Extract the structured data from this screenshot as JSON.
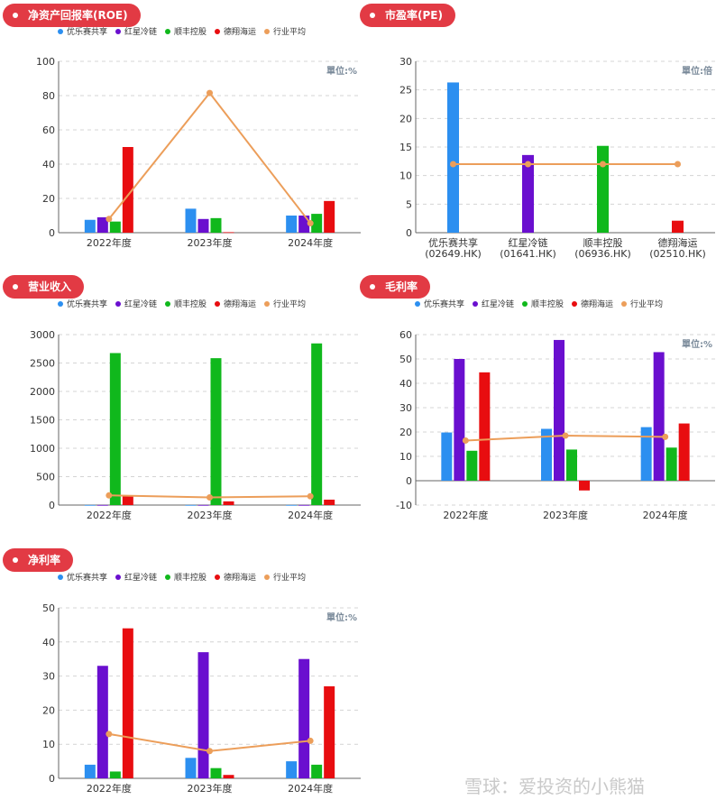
{
  "watermark": "雪球：爱投资的小熊猫",
  "colors": {
    "youle": "#2c8ff0",
    "hongxing": "#6a0fcf",
    "shunfeng": "#10b81c",
    "dexiang": "#e80d10",
    "avg": "#ec9e5a"
  },
  "legend": [
    {
      "name": "优乐赛共享",
      "color": "#2c8ff0",
      "dot": "dot-blue"
    },
    {
      "name": "红星冷链",
      "color": "#6a0fcf",
      "dot": "dot-purple"
    },
    {
      "name": "顺丰控股",
      "color": "#10b81c",
      "dot": "dot-green"
    },
    {
      "name": "德翔海运",
      "color": "#e80d10",
      "dot": "dot-red"
    },
    {
      "name": "行业平均",
      "color": "#ec9e5a",
      "dot": "dot-orange"
    }
  ],
  "chart_data": [
    {
      "id": "roe",
      "title": "净资产回报率(ROE)",
      "type": "bar",
      "unit_label": "單位:%",
      "categories": [
        "2022年度",
        "2023年度",
        "2024年度"
      ],
      "ylim": [
        0,
        100
      ],
      "yticks": [
        0,
        20,
        40,
        60,
        80,
        100
      ],
      "series": [
        {
          "name": "优乐赛共享",
          "values": [
            7.5,
            14,
            10
          ]
        },
        {
          "name": "红星冷链",
          "values": [
            9,
            8,
            10
          ]
        },
        {
          "name": "顺丰控股",
          "values": [
            6.5,
            8.5,
            11
          ]
        },
        {
          "name": "德翔海运",
          "values": [
            50,
            0.3,
            18.5
          ]
        }
      ],
      "line": {
        "name": "行业平均",
        "values": [
          8,
          81.5,
          5.5
        ]
      }
    },
    {
      "id": "pe",
      "title": "市盈率(PE)",
      "type": "bar",
      "unit_label": "單位:倍",
      "categories": [
        "优乐赛共享\n(02649.HK)",
        "红星冷链\n(01641.HK)",
        "顺丰控股\n(06936.HK)",
        "德翔海运\n(02510.HK)"
      ],
      "ylim": [
        0,
        30
      ],
      "yticks": [
        0,
        5,
        10,
        15,
        20,
        25,
        30
      ],
      "bars": [
        26.3,
        13.6,
        15.2,
        2.1
      ],
      "line": {
        "name": "行业平均",
        "values": [
          12,
          12,
          12,
          12
        ]
      }
    },
    {
      "id": "revenue",
      "title": "营业收入",
      "type": "bar",
      "unit_label": "",
      "categories": [
        "2022年度",
        "2023年度",
        "2024年度"
      ],
      "ylim": [
        0,
        3000
      ],
      "yticks": [
        0,
        500,
        1000,
        1500,
        2000,
        2500,
        3000
      ],
      "series": [
        {
          "name": "优乐赛共享",
          "values": [
            2,
            2,
            2
          ]
        },
        {
          "name": "红星冷链",
          "values": [
            2,
            2,
            2
          ]
        },
        {
          "name": "顺丰控股",
          "values": [
            2675,
            2585,
            2845
          ]
        },
        {
          "name": "德翔海运",
          "values": [
            165,
            65,
            95
          ]
        }
      ],
      "line": {
        "name": "行业平均",
        "values": [
          170,
          135,
          155
        ]
      }
    },
    {
      "id": "gross",
      "title": "毛利率",
      "type": "bar",
      "unit_label": "單位:%",
      "categories": [
        "2022年度",
        "2023年度",
        "2024年度"
      ],
      "ylim": [
        -10,
        60
      ],
      "yticks": [
        -10,
        0,
        10,
        20,
        30,
        40,
        50,
        60
      ],
      "series": [
        {
          "name": "优乐赛共享",
          "values": [
            19.8,
            21.3,
            22
          ]
        },
        {
          "name": "红星冷链",
          "values": [
            50,
            57.8,
            52.8
          ]
        },
        {
          "name": "顺丰控股",
          "values": [
            12.3,
            12.8,
            13.6
          ]
        },
        {
          "name": "德翔海运",
          "values": [
            44.5,
            -4,
            23.5
          ]
        }
      ],
      "line": {
        "name": "行业平均",
        "values": [
          16.5,
          18.5,
          18
        ]
      }
    },
    {
      "id": "net",
      "title": "净利率",
      "type": "bar",
      "unit_label": "單位:%",
      "categories": [
        "2022年度",
        "2023年度",
        "2024年度"
      ],
      "ylim": [
        0,
        50
      ],
      "yticks": [
        0,
        10,
        20,
        30,
        40,
        50
      ],
      "series": [
        {
          "name": "优乐赛共享",
          "values": [
            4,
            6,
            5
          ]
        },
        {
          "name": "红星冷链",
          "values": [
            33,
            37,
            35
          ]
        },
        {
          "name": "顺丰控股",
          "values": [
            2,
            3,
            4
          ]
        },
        {
          "name": "德翔海运",
          "values": [
            44,
            1,
            27
          ]
        }
      ],
      "line": {
        "name": "行业平均",
        "values": [
          13,
          8,
          11
        ]
      }
    }
  ]
}
